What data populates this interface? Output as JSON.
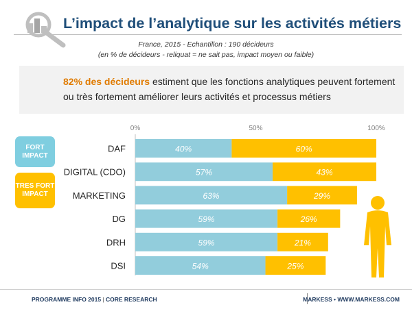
{
  "header": {
    "title": "L’impact de l’analytique sur les activités métiers",
    "subtitle_line1": "France, 2015 - Echantillon : 190 décideurs",
    "subtitle_line2": "(en % de décideurs - reliquat = ne sait pas, impact moyen ou faible)"
  },
  "callout": {
    "highlight": "82% des décideurs",
    "text": " estiment  que les fonctions analytiques peuvent fortement ou très fortement améliorer leurs activités  et processus métiers"
  },
  "legend": {
    "fort_label": "FORT IMPACT",
    "tres_fort_label": "TRES FORT IMPACT"
  },
  "colors": {
    "fort": "#92cddc",
    "tres_fort": "#ffc000",
    "title": "#1f4e79",
    "highlight": "#e07b00",
    "silhouette": "#ffc000"
  },
  "chart_data": {
    "type": "bar",
    "orientation": "horizontal",
    "stacked": true,
    "categories": [
      "DAF",
      "DIGITAL (CDO)",
      "MARKETING",
      "DG",
      "DRH",
      "DSI"
    ],
    "series": [
      {
        "name": "FORT IMPACT",
        "values": [
          40,
          57,
          63,
          59,
          59,
          54
        ]
      },
      {
        "name": "TRES FORT IMPACT",
        "values": [
          60,
          43,
          29,
          26,
          21,
          25
        ]
      }
    ],
    "data_labels": [
      [
        "40%",
        "57%",
        "63%",
        "59%",
        "59%",
        "54%"
      ],
      [
        "60%",
        "43%",
        "29%",
        "26%",
        "21%",
        "25%"
      ]
    ],
    "x_ticks": [
      "0%",
      "50%",
      "100%"
    ],
    "xlim": [
      0,
      100
    ],
    "grid": false,
    "legend_position": "left"
  },
  "footer": {
    "left_program": "PROGRAMME INFO 2015",
    "left_separator": " | ",
    "left_research": "CORE RESEARCH",
    "right": "MARKESS • WWW.MARKESS.COM"
  },
  "icons": {
    "magnifier": "magnifier-chart-icon",
    "pie": "pie-chart-icon",
    "person": "person-silhouette-icon",
    "brand": "markess-logo-icon"
  }
}
